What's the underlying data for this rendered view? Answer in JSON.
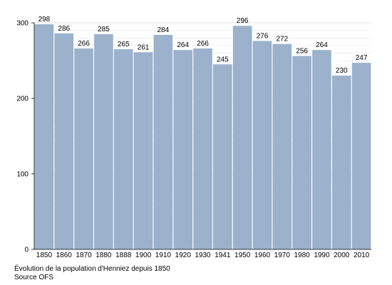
{
  "chart_data": {
    "type": "bar",
    "categories": [
      "1850",
      "1860",
      "1870",
      "1880",
      "1888",
      "1900",
      "1910",
      "1920",
      "1930",
      "1941",
      "1950",
      "1960",
      "1970",
      "1980",
      "1990",
      "2000",
      "2010"
    ],
    "values": [
      298,
      286,
      266,
      285,
      265,
      261,
      284,
      264,
      266,
      245,
      296,
      276,
      272,
      256,
      264,
      230,
      247
    ],
    "ylim": [
      0,
      300
    ],
    "yticks": [
      0,
      100,
      200,
      300
    ],
    "grid": true,
    "legend": "none",
    "bar_color": "#9bb1cc",
    "grid_color": "#e6e6e6"
  },
  "caption": {
    "line1": "Évolution de la population d'Henniez depuis 1850",
    "line2": "Source OFS"
  }
}
